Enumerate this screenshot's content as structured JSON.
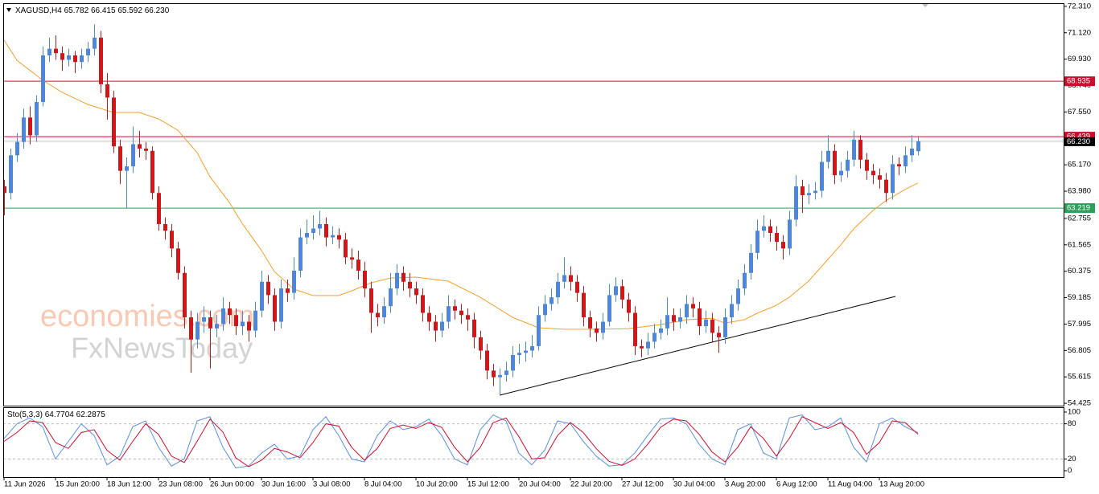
{
  "chart_data": [
    {
      "type": "candlestick",
      "title": "XAGUSD,H4",
      "open": [
        64.2,
        63.9,
        65.6,
        66.2,
        67.3,
        66.5,
        68.0,
        70.1,
        70.4,
        70.2,
        69.9,
        70.1,
        69.8,
        70.1,
        70.4,
        70.9,
        68.8,
        68.2,
        66.0,
        64.9,
        65.1,
        66.1,
        65.9,
        65.8,
        63.9,
        62.5,
        62.2,
        61.4,
        60.3,
        58.3,
        57.3,
        58.1,
        58.3,
        57.8,
        58.0,
        58.7,
        58.4,
        57.9,
        58.1,
        57.7,
        58.6,
        59.9,
        59.3,
        58.1,
        59.6,
        59.4,
        60.4,
        61.9,
        62.1,
        62.3,
        62.5,
        61.9,
        62.0,
        61.8,
        61.0,
        60.9,
        60.4,
        59.6,
        58.5,
        58.3,
        58.8,
        59.6,
        60.3,
        59.9,
        59.6,
        59.3,
        58.5,
        58.1,
        57.7,
        58.1,
        58.8,
        58.6,
        58.4,
        58.2,
        57.4,
        56.8,
        55.9,
        55.6,
        55.7,
        55.9,
        56.6,
        56.7,
        56.8,
        57.0,
        58.4,
        58.9,
        59.2,
        59.9,
        60.2,
        59.9,
        59.4,
        58.3,
        57.8,
        57.6,
        58.1,
        59.3,
        59.7,
        59.1,
        58.5,
        57.0,
        56.9,
        57.2,
        57.6,
        57.8,
        58.4,
        58.1,
        58.3,
        58.9,
        58.7,
        57.9,
        58.2,
        57.6,
        57.4,
        58.3,
        58.9,
        59.6,
        60.3,
        61.2,
        62.2,
        62.4,
        62.1,
        61.7,
        61.4,
        62.7,
        64.2,
        63.8,
        63.9,
        64.0,
        65.3,
        65.8,
        64.7,
        64.9,
        65.4,
        66.3,
        65.4,
        64.9,
        64.7,
        64.5,
        63.9,
        65.2,
        65.1,
        65.6,
        65.782
      ],
      "high": [
        64.5,
        65.9,
        66.6,
        67.7,
        67.8,
        68.3,
        70.5,
        70.9,
        71.0,
        70.5,
        70.4,
        70.3,
        70.4,
        70.7,
        71.5,
        71.2,
        69.3,
        68.5,
        66.3,
        65.5,
        66.9,
        66.7,
        66.2,
        66.0,
        64.2,
        62.8,
        62.5,
        61.7,
        60.6,
        58.6,
        58.5,
        58.8,
        58.6,
        58.4,
        59.2,
        59.0,
        58.7,
        58.6,
        58.4,
        59.0,
        60.4,
        60.2,
        59.6,
        60.0,
        60.0,
        61.0,
        62.3,
        62.7,
        62.9,
        63.1,
        62.8,
        62.4,
        62.3,
        62.1,
        61.4,
        61.3,
        60.8,
        59.9,
        58.9,
        59.2,
        60.3,
        60.7,
        60.6,
        60.3,
        59.9,
        59.6,
        58.8,
        58.4,
        58.5,
        59.3,
        59.1,
        58.9,
        58.7,
        58.5,
        57.7,
        57.1,
        56.2,
        56.0,
        56.3,
        57.0,
        57.1,
        57.2,
        57.5,
        58.8,
        59.3,
        59.6,
        60.3,
        61.0,
        60.6,
        60.2,
        59.7,
        58.6,
        58.1,
        58.5,
        59.8,
        60.1,
        60.0,
        59.4,
        58.8,
        57.3,
        57.6,
        58.0,
        58.2,
        59.2,
        58.7,
        58.7,
        59.3,
        59.2,
        59.0,
        58.6,
        58.5,
        57.9,
        58.7,
        59.3,
        60.0,
        60.7,
        61.6,
        62.7,
        62.9,
        62.7,
        62.4,
        62.0,
        63.1,
        64.7,
        64.5,
        64.3,
        64.4,
        65.8,
        66.5,
        66.1,
        65.3,
        65.8,
        66.7,
        66.5,
        65.7,
        65.2,
        65.0,
        64.8,
        65.6,
        65.5,
        66.0,
        66.5,
        66.415
      ],
      "low": [
        62.9,
        63.6,
        65.3,
        65.9,
        66.1,
        66.2,
        67.8,
        69.8,
        69.9,
        69.4,
        69.6,
        69.3,
        69.5,
        69.8,
        70.1,
        68.4,
        67.2,
        65.7,
        64.3,
        63.2,
        64.8,
        65.5,
        65.4,
        63.6,
        62.2,
        61.8,
        61.0,
        60.0,
        57.8,
        55.8,
        56.9,
        57.6,
        56.0,
        57.4,
        57.7,
        58.0,
        57.5,
        57.5,
        57.2,
        57.4,
        58.3,
        58.9,
        57.7,
        57.8,
        59.0,
        59.1,
        60.1,
        61.6,
        61.8,
        62.0,
        61.5,
        61.6,
        61.4,
        60.7,
        60.5,
        60.0,
        59.2,
        57.6,
        57.9,
        58.0,
        58.5,
        59.3,
        59.5,
        59.2,
        58.9,
        58.1,
        57.7,
        57.2,
        57.4,
        57.8,
        58.2,
        58.0,
        57.7,
        56.9,
        56.4,
        55.5,
        55.2,
        54.8,
        55.4,
        55.6,
        56.2,
        56.3,
        56.5,
        56.8,
        58.1,
        58.6,
        58.9,
        59.6,
        59.5,
        59.0,
        57.9,
        57.4,
        57.2,
        57.3,
        57.9,
        59.0,
        58.7,
        58.1,
        56.6,
        56.5,
        56.6,
        56.9,
        57.3,
        57.5,
        57.7,
        57.8,
        58.0,
        58.3,
        57.5,
        57.6,
        57.2,
        56.7,
        57.1,
        58.0,
        58.6,
        59.3,
        60.0,
        60.9,
        61.9,
        61.7,
        61.3,
        60.9,
        61.1,
        62.4,
        63.0,
        63.4,
        63.6,
        63.7,
        65.0,
        64.3,
        64.4,
        64.6,
        65.1,
        65.0,
        64.5,
        64.3,
        64.1,
        63.5,
        63.6,
        64.7,
        64.8,
        65.3,
        65.592
      ],
      "close": [
        63.9,
        65.6,
        66.2,
        67.3,
        66.5,
        68.0,
        70.1,
        70.4,
        70.2,
        69.9,
        70.1,
        69.8,
        70.1,
        70.4,
        70.9,
        68.8,
        68.2,
        66.0,
        64.9,
        65.1,
        66.1,
        65.9,
        65.8,
        63.9,
        62.5,
        62.2,
        61.4,
        60.3,
        58.3,
        57.3,
        58.1,
        58.3,
        57.8,
        58.0,
        58.7,
        58.4,
        57.9,
        58.1,
        57.7,
        58.6,
        59.9,
        59.3,
        58.1,
        59.6,
        59.4,
        60.4,
        61.9,
        62.1,
        62.3,
        62.5,
        61.9,
        62.0,
        61.8,
        61.0,
        60.9,
        60.4,
        59.6,
        58.5,
        58.3,
        58.8,
        59.6,
        60.3,
        59.9,
        59.6,
        59.3,
        58.5,
        58.1,
        57.7,
        58.1,
        58.8,
        58.6,
        58.4,
        58.2,
        57.4,
        56.8,
        55.9,
        55.6,
        55.7,
        55.9,
        56.6,
        56.7,
        56.8,
        57.0,
        58.4,
        58.9,
        59.2,
        59.9,
        60.2,
        59.9,
        59.4,
        58.3,
        57.8,
        57.6,
        58.1,
        59.3,
        59.7,
        59.1,
        58.5,
        57.0,
        56.9,
        57.2,
        57.6,
        57.8,
        58.4,
        58.1,
        58.3,
        58.9,
        58.7,
        57.9,
        58.2,
        57.6,
        57.4,
        58.3,
        58.9,
        59.6,
        60.3,
        61.2,
        62.2,
        62.4,
        62.1,
        61.7,
        61.4,
        62.7,
        64.2,
        63.8,
        63.9,
        64.0,
        65.3,
        65.8,
        64.7,
        64.9,
        65.4,
        66.3,
        65.4,
        64.9,
        64.7,
        64.5,
        63.9,
        65.2,
        65.1,
        65.6,
        65.9,
        66.23
      ],
      "up_color": "#4f86d9",
      "down_color": "#d0161b",
      "xlim": [
        -0.125,
        164.625
      ],
      "xticks": [
        {
          "value": 0,
          "label": "11 Jun 2026"
        },
        {
          "value": 8,
          "label": "15 Jun 20:00"
        },
        {
          "value": 16,
          "label": "18 Jun 12:00"
        },
        {
          "value": 24,
          "label": "23 Jun 08:00"
        },
        {
          "value": 32,
          "label": "26 Jun 00:00"
        },
        {
          "value": 40,
          "label": "30 Jun 16:00"
        },
        {
          "value": 48,
          "label": "3 Jul 08:00"
        },
        {
          "value": 56,
          "label": "8 Jul 04:00"
        },
        {
          "value": 64,
          "label": "10 Jul 20:00"
        },
        {
          "value": 72,
          "label": "15 Jul 12:00"
        },
        {
          "value": 80,
          "label": "20 Jul 04:00"
        },
        {
          "value": 88,
          "label": "22 Jul 20:00"
        },
        {
          "value": 96,
          "label": "27 Jul 12:00"
        },
        {
          "value": 104,
          "label": "30 Jul 04:00"
        },
        {
          "value": 112,
          "label": "3 Aug 20:00"
        },
        {
          "value": 120,
          "label": "6 Aug 12:00"
        },
        {
          "value": 128,
          "label": "11 Aug 04:00"
        },
        {
          "value": 136,
          "label": "13 Aug 20:00"
        }
      ],
      "ylim": [
        54.32,
        72.45
      ],
      "yticks": [
        {
          "value": 72.31,
          "label": "72.310"
        },
        {
          "value": 71.12,
          "label": "71.120"
        },
        {
          "value": 69.93,
          "label": "69.930"
        },
        {
          "value": 68.74,
          "label": "68.740"
        },
        {
          "value": 67.55,
          "label": "67.550"
        },
        {
          "value": 65.17,
          "label": "65.170"
        },
        {
          "value": 63.98,
          "label": "63.980"
        },
        62.755,
        61.565,
        60.375,
        59.185,
        57.995,
        56.805,
        55.615,
        54.425
      ],
      "last_price": {
        "value": 66.23,
        "label": "66.230"
      },
      "levels": [
        {
          "value": 68.935,
          "color": "#c8102e"
        },
        {
          "value": 66.439,
          "color": "#c8102e"
        },
        {
          "value": 63.219,
          "color": "#2e9e5b"
        }
      ],
      "moving_average": {
        "color": "#f0a030",
        "x": [
          0,
          2,
          6,
          9,
          13,
          17,
          21,
          24,
          27,
          30,
          32,
          35,
          37,
          40,
          42,
          45,
          48,
          52,
          54,
          57,
          60,
          64,
          69,
          74,
          79,
          83,
          87,
          92,
          97,
          102,
          106,
          110,
          112,
          115,
          117,
          120,
          122,
          125,
          127,
          130,
          132,
          135,
          137,
          140,
          142
        ],
        "values": [
          70.79,
          69.88,
          68.98,
          68.44,
          67.89,
          67.53,
          67.53,
          67.24,
          66.73,
          65.72,
          64.63,
          63.48,
          62.53,
          61.31,
          60.36,
          59.57,
          59.28,
          59.28,
          59.49,
          59.85,
          60.07,
          60.11,
          59.93,
          59.2,
          58.3,
          57.83,
          57.76,
          57.76,
          57.79,
          57.97,
          58.19,
          58.26,
          58.04,
          58.19,
          58.48,
          58.84,
          59.2,
          59.93,
          60.58,
          61.56,
          62.28,
          63.11,
          63.55,
          64.06,
          64.35
        ]
      },
      "trendline": {
        "color": "#000000",
        "x": [
          77,
          138.5
        ],
        "values": [
          54.79,
          59.24
        ]
      },
      "watermark": [
        "economies.com",
        "FxNewsToday"
      ]
    },
    {
      "type": "line",
      "title": "Sto(5,3,3)",
      "x": [
        0,
        2,
        4,
        6,
        8,
        10,
        12,
        14,
        16,
        18,
        20,
        22,
        24,
        26,
        28,
        30,
        32,
        34,
        36,
        38,
        40,
        42,
        44,
        46,
        48,
        50,
        52,
        54,
        56,
        58,
        60,
        62,
        64,
        66,
        68,
        70,
        72,
        74,
        76,
        78,
        80,
        82,
        84,
        86,
        88,
        90,
        92,
        94,
        96,
        98,
        100,
        102,
        104,
        106,
        108,
        110,
        112,
        114,
        116,
        118,
        120,
        122,
        124,
        126,
        128,
        130,
        132,
        134,
        136,
        138,
        140,
        142
      ],
      "series": [
        {
          "color": "#5b8ede",
          "values": [
            55,
            80,
            90,
            75,
            20,
            50,
            80,
            60,
            10,
            25,
            75,
            85,
            40,
            8,
            20,
            85,
            92,
            40,
            5,
            8,
            30,
            45,
            20,
            25,
            70,
            92,
            60,
            20,
            15,
            60,
            85,
            70,
            75,
            88,
            60,
            20,
            10,
            70,
            95,
            85,
            30,
            10,
            35,
            85,
            80,
            50,
            25,
            8,
            10,
            30,
            60,
            88,
            90,
            80,
            45,
            20,
            10,
            70,
            80,
            30,
            20,
            90,
            95,
            70,
            75,
            90,
            40,
            15,
            80,
            90,
            75,
            64.7704
          ]
        },
        {
          "color": "#c8102e",
          "values": [
            50,
            65,
            85,
            82,
            48,
            38,
            65,
            70,
            35,
            18,
            50,
            80,
            62,
            25,
            14,
            50,
            88,
            66,
            22,
            7,
            18,
            38,
            32,
            22,
            48,
            80,
            76,
            40,
            18,
            38,
            72,
            78,
            72,
            82,
            74,
            40,
            15,
            40,
            82,
            90,
            58,
            20,
            22,
            60,
            82,
            65,
            38,
            16,
            9,
            20,
            45,
            74,
            88,
            85,
            62,
            32,
            15,
            40,
            75,
            55,
            25,
            55,
            92,
            82,
            72,
            82,
            65,
            28,
            48,
            85,
            82,
            62.2875
          ]
        }
      ],
      "xlim": [
        -0.125,
        164.625
      ],
      "ylim": [
        0,
        100
      ],
      "yticks": [
        100,
        80,
        20,
        0
      ],
      "levels": [
        80,
        20
      ]
    }
  ]
}
